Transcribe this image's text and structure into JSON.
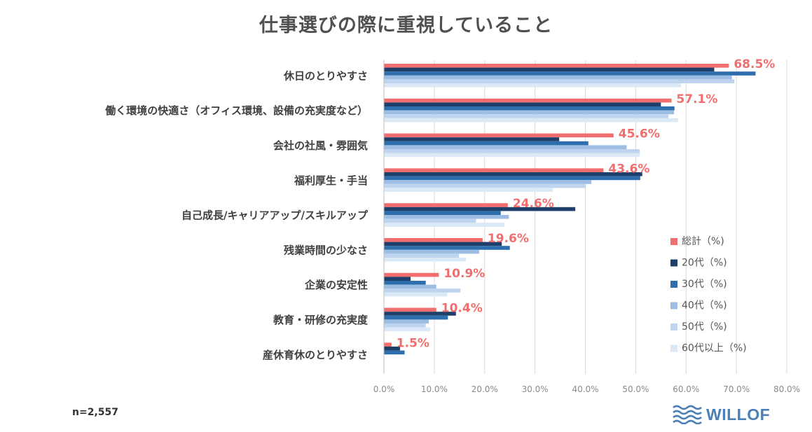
{
  "chart_data": {
    "type": "bar",
    "orientation": "horizontal",
    "title": "仕事選びの際に重視していること",
    "categories": [
      "休日のとりやすさ",
      "働く環境の快適さ（オフィス環境、設備の充実度など）",
      "会社の社風・雰囲気",
      "福利厚生・手当",
      "自己成長/キャリアアップ/スキルアップ",
      "残業時間の少なさ",
      "企業の安定性",
      "教育・研修の充実度",
      "産休育休のとりやすさ"
    ],
    "series": [
      {
        "name": "総計（%)",
        "color": "#f26d6d",
        "values": [
          68.5,
          57.1,
          45.6,
          43.6,
          24.6,
          19.6,
          10.9,
          10.4,
          1.5
        ]
      },
      {
        "name": "20代（%)",
        "color": "#1f3f6b",
        "values": [
          65.6,
          55.0,
          34.8,
          51.3,
          38.0,
          23.4,
          5.3,
          14.3,
          3.2
        ]
      },
      {
        "name": "30代（%)",
        "color": "#2f6ead",
        "values": [
          73.8,
          57.7,
          40.6,
          50.9,
          23.2,
          25.0,
          8.3,
          12.7,
          4.1
        ]
      },
      {
        "name": "40代（%)",
        "color": "#9dbde3",
        "values": [
          69.1,
          57.6,
          48.2,
          41.2,
          24.8,
          18.9,
          10.4,
          8.9,
          0.0
        ]
      },
      {
        "name": "50代（%)",
        "color": "#bfd4ee",
        "values": [
          69.6,
          56.5,
          50.8,
          40.1,
          18.3,
          14.9,
          15.2,
          8.3,
          0.0
        ]
      },
      {
        "name": "60代以上（%)",
        "color": "#dbe8f6",
        "values": [
          59.0,
          58.4,
          50.8,
          33.5,
          23.9,
          16.3,
          12.6,
          9.2,
          0.0
        ]
      }
    ],
    "data_labels": [
      "68.5%",
      "57.1%",
      "45.6%",
      "43.6%",
      "24.6%",
      "19.6%",
      "10.9%",
      "10.4%",
      "1.5%"
    ],
    "x_ticks": [
      "0.0%",
      "10.0%",
      "20.0%",
      "30.0%",
      "40.0%",
      "50.0%",
      "60.0%",
      "70.0%",
      "80.0%"
    ],
    "xlim": [
      0,
      80
    ],
    "grid": "vertical",
    "legend_position": "right"
  },
  "footer": {
    "sample_size": "n=2,557",
    "logo_text": "WILLOF"
  }
}
